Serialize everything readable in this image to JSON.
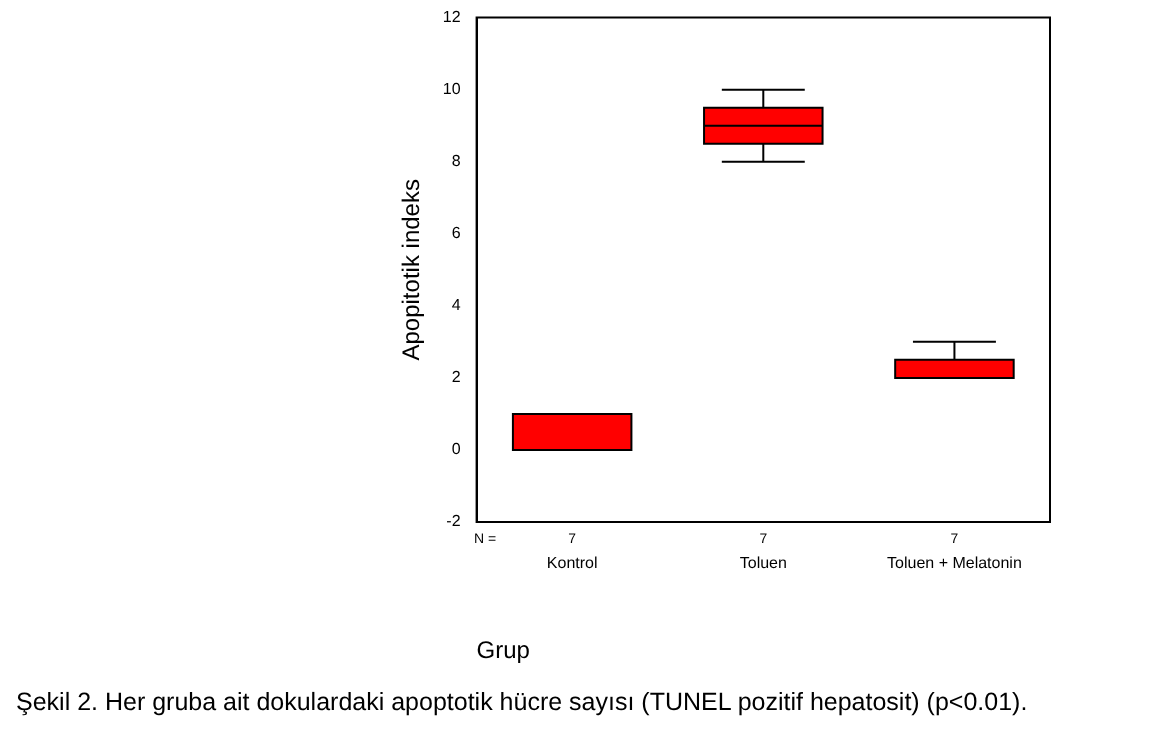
{
  "chart_data": {
    "type": "box",
    "xlabel": "Grup",
    "ylabel": "Apopitotik indeks",
    "categories": [
      "Kontrol",
      "Toluen",
      "Toluen + Melatonin"
    ],
    "color": "#ff0000",
    "boxes": [
      {
        "low": 0,
        "q1": 0,
        "median": 0,
        "q3": 1,
        "high": 1
      },
      {
        "low": 8,
        "q1": 8.5,
        "median": 9,
        "q3": 9.5,
        "high": 10
      },
      {
        "low": 2,
        "q1": 2,
        "median": 2,
        "q3": 2.5,
        "high": 3
      }
    ],
    "ylim": [
      -2,
      12
    ],
    "yticks": [
      -2,
      0,
      2,
      4,
      6,
      8,
      10,
      12
    ],
    "grid": false,
    "annotations": [
      "N =",
      "7",
      "7",
      "7",
      "Şekil 2.  Her gruba ait dokulardaki apoptotik hücre sayısı  (TUNEL  pozitif hepatosit) (p<0.01)."
    ]
  }
}
